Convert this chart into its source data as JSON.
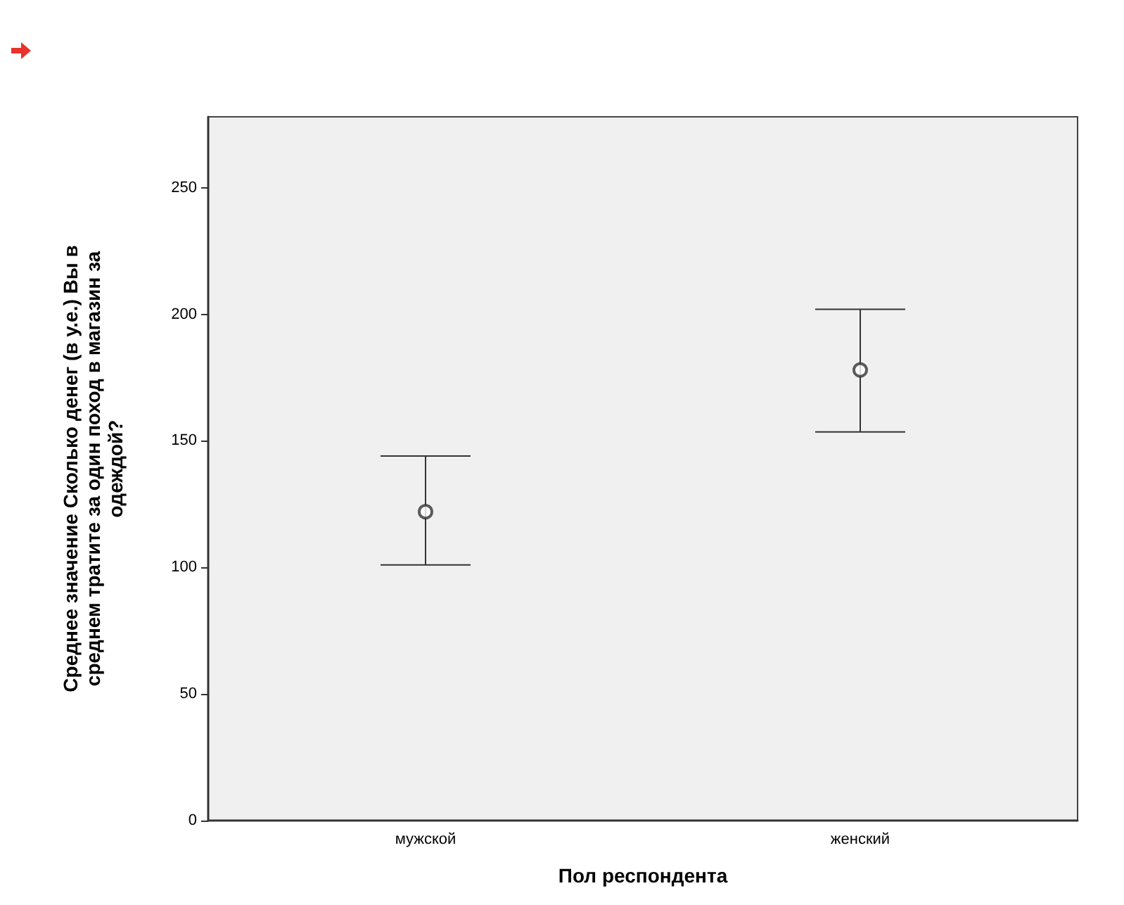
{
  "chart_data": {
    "type": "scatter",
    "xlabel": "Пол респондента",
    "ylabel": "Среднее значение Сколько денег (в у.е.) Вы в среднем тратите за один поход в магазин за одеждой?",
    "categories": [
      "мужской",
      "женский"
    ],
    "values": [
      122,
      178
    ],
    "errors": [
      [
        101,
        144
      ],
      [
        153.5,
        202
      ]
    ],
    "color": "#333333",
    "marker": "circle",
    "ylim": [
      0,
      278
    ],
    "yticks": [
      0,
      50,
      100,
      150,
      200,
      250
    ],
    "grid": false
  }
}
